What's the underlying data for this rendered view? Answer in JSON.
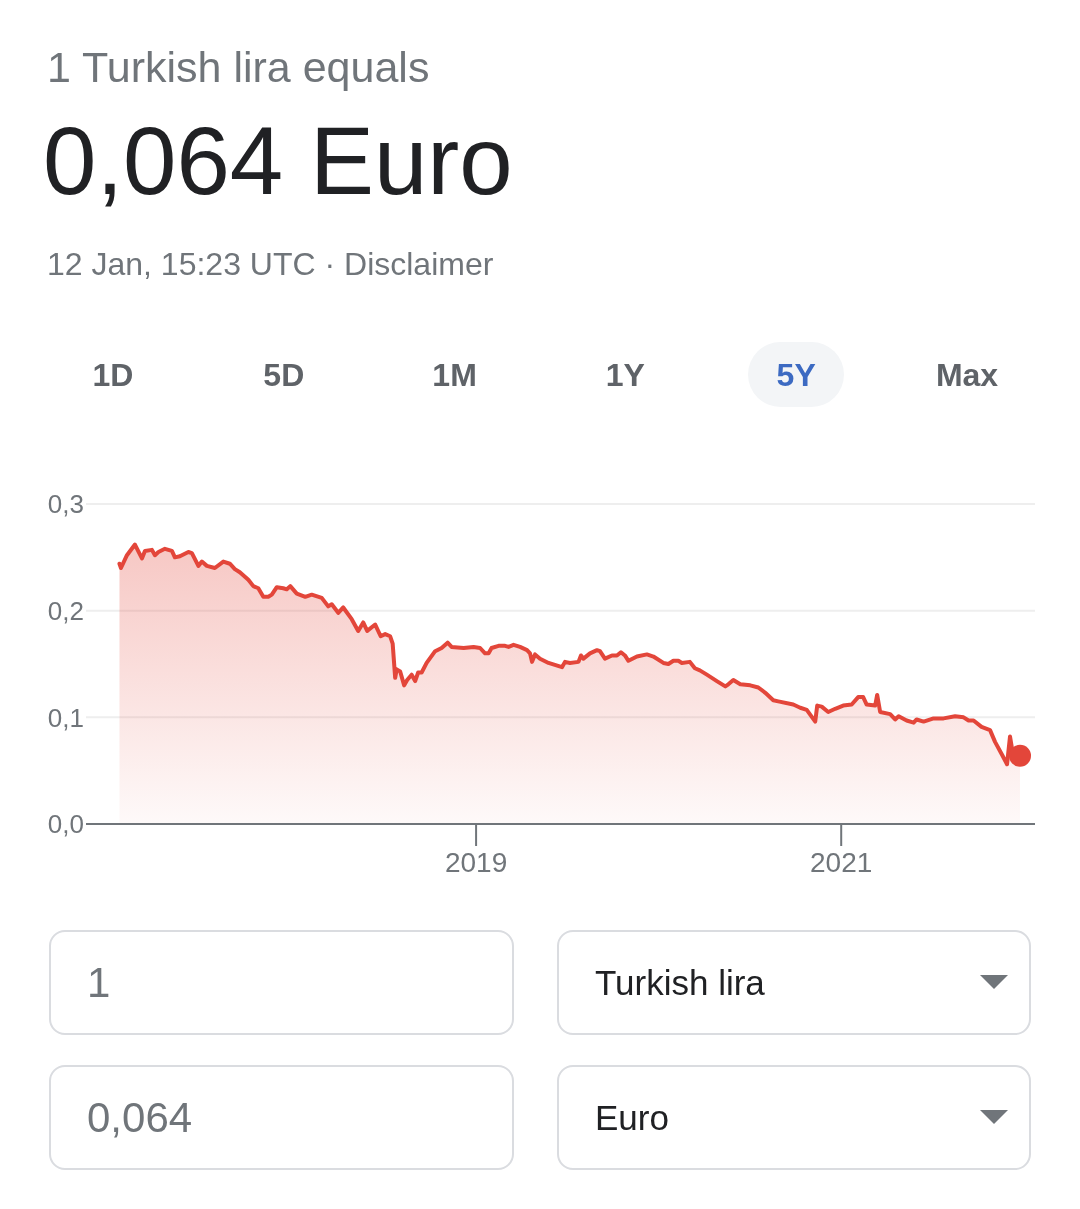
{
  "chart_data": {
    "type": "area",
    "title": "0,064 Euro",
    "subtitle": "12 Jan, 15:23 UTC · Disclaimer",
    "annotations": [
      "1 Turkish lira equals",
      "1D",
      "5D",
      "1M",
      "1Y",
      "5Y",
      "Max",
      "1",
      "Turkish lira",
      "0,064",
      "Euro"
    ],
    "series": [
      {
        "color": "#e3463a",
        "x": [
          "2017-01-17",
          "2017-01-20",
          "2017-02-01",
          "2017-02-17",
          "2017-03-03",
          "2017-03-09",
          "2017-03-23",
          "2017-03-29",
          "2017-04-05",
          "2017-04-18",
          "2017-05-02",
          "2017-05-08",
          "2017-05-18",
          "2017-06-04",
          "2017-06-11",
          "2017-06-24",
          "2017-07-01",
          "2017-07-11",
          "2017-07-27",
          "2017-08-13",
          "2017-08-26",
          "2017-09-05",
          "2017-09-15",
          "2017-10-02",
          "2017-10-12",
          "2017-10-22",
          "2017-11-01",
          "2017-11-11",
          "2017-11-18",
          "2017-11-28",
          "2017-12-11",
          "2017-12-18",
          "2017-12-25",
          "2018-01-07",
          "2018-01-24",
          "2018-02-06",
          "2018-02-26",
          "2018-03-11",
          "2018-03-18",
          "2018-03-31",
          "2018-04-10",
          "2018-04-27",
          "2018-05-10",
          "2018-05-20",
          "2018-05-28",
          "2018-06-13",
          "2018-06-24",
          "2018-07-03",
          "2018-07-13",
          "2018-07-18",
          "2018-07-23",
          "2018-07-26",
          "2018-08-02",
          "2018-08-10",
          "2018-08-16",
          "2018-08-25",
          "2018-09-01",
          "2018-09-07",
          "2018-09-14",
          "2018-09-24",
          "2018-10-11",
          "2018-10-24",
          "2018-11-05",
          "2018-11-13",
          "2018-12-07",
          "2018-12-27",
          "2019-01-09",
          "2019-01-19",
          "2019-01-26",
          "2019-02-01",
          "2019-02-15",
          "2019-02-28",
          "2019-03-07",
          "2019-03-17",
          "2019-03-30",
          "2019-04-13",
          "2019-04-19",
          "2019-04-23",
          "2019-04-29",
          "2019-05-09",
          "2019-05-26",
          "2019-06-22",
          "2019-06-28",
          "2019-07-08",
          "2019-07-25",
          "2019-07-30",
          "2019-08-04",
          "2019-08-17",
          "2019-08-31",
          "2019-09-06",
          "2019-09-16",
          "2019-09-30",
          "2019-10-10",
          "2019-10-18",
          "2019-10-26",
          "2019-11-02",
          "2019-11-19",
          "2019-12-09",
          "2019-12-22",
          "2020-01-11",
          "2020-01-21",
          "2020-01-31",
          "2020-02-10",
          "2020-02-17",
          "2020-03-04",
          "2020-03-14",
          "2020-03-24",
          "2020-04-07",
          "2020-04-27",
          "2020-05-14",
          "2020-05-20",
          "2020-05-30",
          "2020-06-13",
          "2020-07-03",
          "2020-07-19",
          "2020-08-02",
          "2020-08-18",
          "2020-08-28",
          "2020-09-27",
          "2020-10-11",
          "2020-10-24",
          "2020-11-10",
          "2020-11-14",
          "2020-11-23",
          "2020-12-06",
          "2020-12-20",
          "2021-01-05",
          "2021-01-22",
          "2021-02-04",
          "2021-02-14",
          "2021-02-21",
          "2021-03-10",
          "2021-03-14",
          "2021-03-20",
          "2021-04-09",
          "2021-04-19",
          "2021-04-26",
          "2021-05-12",
          "2021-05-26",
          "2021-06-01",
          "2021-06-15",
          "2021-07-05",
          "2021-07-25",
          "2021-08-17",
          "2021-09-03",
          "2021-09-13",
          "2021-09-23",
          "2021-10-09",
          "2021-10-26",
          "2021-11-05",
          "2021-11-19",
          "2021-11-29",
          "2021-12-05",
          "2021-12-12",
          "2021-12-25"
        ],
        "values": [
          0.244,
          0.24,
          0.252,
          0.262,
          0.249,
          0.256,
          0.257,
          0.252,
          0.255,
          0.258,
          0.256,
          0.25,
          0.251,
          0.255,
          0.254,
          0.242,
          0.246,
          0.242,
          0.24,
          0.246,
          0.244,
          0.239,
          0.236,
          0.229,
          0.223,
          0.221,
          0.213,
          0.213,
          0.215,
          0.222,
          0.221,
          0.22,
          0.223,
          0.216,
          0.213,
          0.215,
          0.212,
          0.204,
          0.206,
          0.198,
          0.203,
          0.192,
          0.181,
          0.189,
          0.181,
          0.187,
          0.176,
          0.178,
          0.176,
          0.169,
          0.137,
          0.145,
          0.143,
          0.13,
          0.135,
          0.14,
          0.134,
          0.142,
          0.142,
          0.151,
          0.162,
          0.165,
          0.17,
          0.166,
          0.165,
          0.166,
          0.165,
          0.16,
          0.16,
          0.165,
          0.167,
          0.167,
          0.166,
          0.168,
          0.166,
          0.163,
          0.16,
          0.152,
          0.159,
          0.155,
          0.151,
          0.147,
          0.152,
          0.151,
          0.152,
          0.158,
          0.155,
          0.16,
          0.163,
          0.162,
          0.155,
          0.158,
          0.158,
          0.161,
          0.158,
          0.153,
          0.157,
          0.159,
          0.157,
          0.151,
          0.15,
          0.153,
          0.153,
          0.151,
          0.152,
          0.146,
          0.144,
          0.14,
          0.134,
          0.129,
          0.131,
          0.135,
          0.131,
          0.13,
          0.128,
          0.123,
          0.116,
          0.115,
          0.112,
          0.109,
          0.107,
          0.096,
          0.111,
          0.11,
          0.105,
          0.108,
          0.111,
          0.112,
          0.119,
          0.119,
          0.112,
          0.111,
          0.121,
          0.105,
          0.103,
          0.098,
          0.101,
          0.097,
          0.095,
          0.098,
          0.096,
          0.099,
          0.099,
          0.101,
          0.1,
          0.097,
          0.097,
          0.091,
          0.088,
          0.077,
          0.065,
          0.056,
          0.082,
          0.062,
          0.064
        ]
      },
      {
        "type": "scatter",
        "color": "#e3463a",
        "marker": "circle",
        "x": [
          "2021-12-25"
        ],
        "values": [
          0.064
        ]
      }
    ],
    "xlim": [
      "2016-11-11",
      "2022-01-24"
    ],
    "xticks": [
      "2019",
      "2021"
    ],
    "ylim": [
      0,
      0.3
    ],
    "yticks": [
      {
        "value": 0,
        "label": "0,0"
      },
      {
        "value": 0.1,
        "label": "0,1"
      },
      {
        "value": 0.2,
        "label": "0,2"
      },
      {
        "value": 0.3,
        "label": "0,3"
      }
    ],
    "grid": "y"
  }
}
